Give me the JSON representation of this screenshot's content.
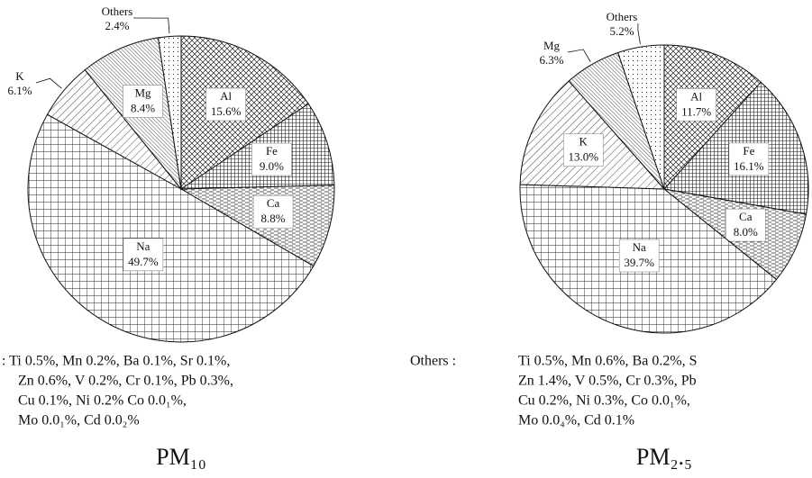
{
  "chart_data": [
    {
      "type": "pie",
      "title": "PM₁₀",
      "categories": [
        "Al",
        "Fe",
        "Ca",
        "Na",
        "K",
        "Mg",
        "Others"
      ],
      "values": [
        15.6,
        9.0,
        8.8,
        49.7,
        6.1,
        8.4,
        2.4
      ],
      "value_labels": [
        "15.6%",
        "9.0%",
        "8.8%",
        "49.7%",
        "6.1%",
        "8.4%",
        "2.4%"
      ],
      "patterns": [
        "wave",
        "crossfine",
        "dash",
        "grid",
        "diag",
        "diagdense",
        "dots"
      ],
      "notes": {
        "lines": [
          ": Ti 0.5%, Mn 0.2%, Ba 0.1%, Sr 0.1%,",
          "Zn 0.6%, V 0.2%, Cr 0.1%, Pb 0.3%,",
          "Cu 0.1%, Ni 0.2% Co 0.0₁%,",
          "Mo 0.0₁%, Cd 0.0₂%"
        ]
      }
    },
    {
      "type": "pie",
      "title": "PM₂.₅",
      "categories": [
        "Al",
        "Fe",
        "Ca",
        "Na",
        "K",
        "Mg",
        "Others"
      ],
      "values": [
        11.7,
        16.1,
        8.0,
        39.7,
        13.0,
        6.3,
        5.2
      ],
      "value_labels": [
        "11.7%",
        "16.1%",
        "8.0%",
        "39.7%",
        "13.0%",
        "6.3%",
        "5.2%"
      ],
      "patterns": [
        "wave",
        "crossfine",
        "dash",
        "grid",
        "diag",
        "diagdense",
        "dots"
      ],
      "notes": {
        "prefix": "Others :",
        "lines": [
          "Ti 0.5%, Mn 0.6%, Ba 0.2%, S",
          "Zn 1.4%, V 0.5%, Cr 0.3%, Pb",
          "Cu 0.2%, Ni 0.3%, Co 0.0₁%,",
          "Mo 0.0₄%, Cd 0.1%"
        ]
      }
    }
  ]
}
